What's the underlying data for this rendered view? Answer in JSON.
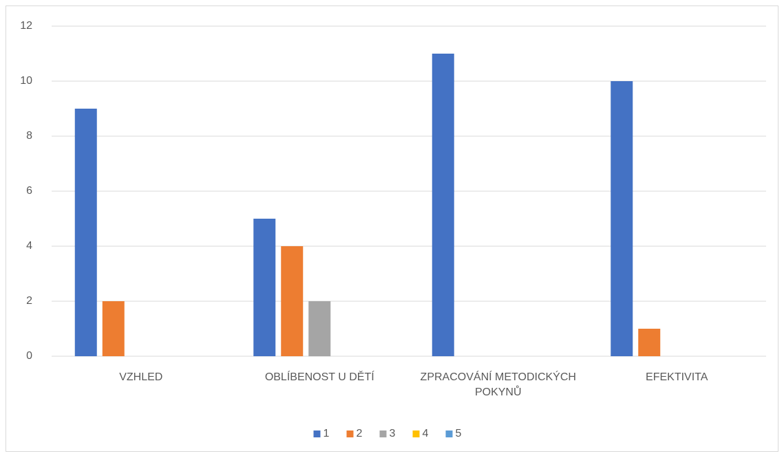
{
  "chart_data": {
    "type": "bar",
    "categories": [
      "VZHLED",
      "OBLÍBENOST U DĚTÍ",
      "ZPRACOVÁNÍ METODICKÝCH POKYNŮ",
      "EFEKTIVITA"
    ],
    "series": [
      {
        "name": "1",
        "color": "#4472c4",
        "values": [
          9,
          5,
          11,
          10
        ]
      },
      {
        "name": "2",
        "color": "#ed7d31",
        "values": [
          2,
          4,
          0,
          1
        ]
      },
      {
        "name": "3",
        "color": "#a5a5a5",
        "values": [
          0,
          2,
          0,
          0
        ]
      },
      {
        "name": "4",
        "color": "#ffc000",
        "values": [
          0,
          0,
          0,
          0
        ]
      },
      {
        "name": "5",
        "color": "#5b9bd5",
        "values": [
          0,
          0,
          0,
          0
        ]
      }
    ],
    "ylim": [
      0,
      12
    ],
    "yticks": [
      0,
      2,
      4,
      6,
      8,
      10,
      12
    ],
    "grid": true,
    "legend": "bottom"
  }
}
